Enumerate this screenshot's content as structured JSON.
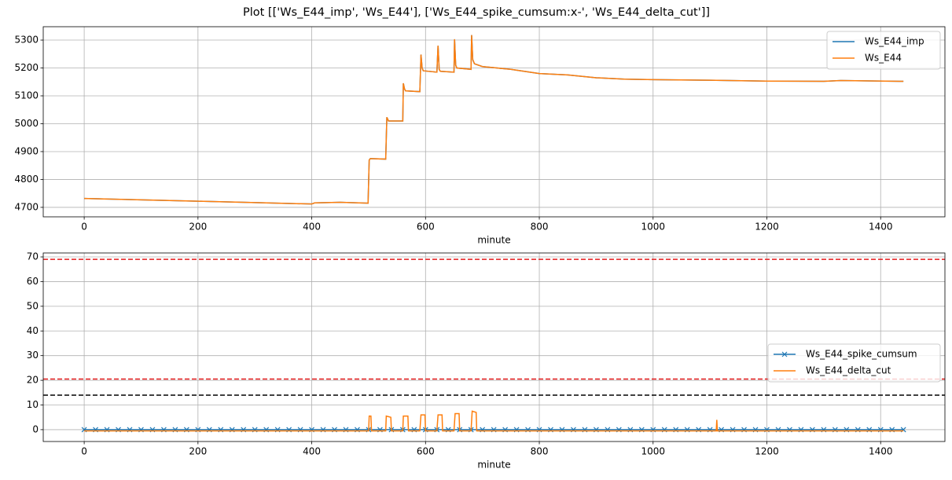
{
  "title": "Plot [['Ws_E44_imp', 'Ws_E44'], ['Ws_E44_spike_cumsum:x-', 'Ws_E44_delta_cut']]",
  "chart_data": [
    {
      "type": "line",
      "xlabel": "minute",
      "grid": true,
      "legend": "upper right",
      "xlim": [
        -72,
        1513
      ],
      "xticks": [
        0,
        200,
        400,
        600,
        800,
        1000,
        1200,
        1400
      ],
      "ylim": [
        4666,
        5348
      ],
      "yticks": [
        4700,
        4800,
        4900,
        5000,
        5100,
        5200,
        5300
      ],
      "x": [
        0,
        100,
        200,
        300,
        400,
        405,
        450,
        499,
        501,
        503,
        530,
        532,
        535,
        560,
        561,
        563,
        565,
        590,
        592,
        594,
        596,
        620,
        622,
        624,
        626,
        650,
        651,
        653,
        655,
        680,
        681,
        683,
        686,
        700,
        750,
        800,
        850,
        900,
        950,
        1000,
        1100,
        1200,
        1300,
        1330,
        1440
      ],
      "series": [
        {
          "name": "Ws_E44_imp",
          "color": "#1f77b4",
          "values": [
            4732,
            4727,
            4722,
            4717,
            4712,
            4716,
            4718,
            4715,
            4870,
            4875,
            4873,
            5023,
            5010,
            5010,
            5145,
            5125,
            5118,
            5115,
            5248,
            5200,
            5190,
            5185,
            5280,
            5195,
            5188,
            5185,
            5303,
            5210,
            5200,
            5195,
            5318,
            5230,
            5215,
            5205,
            5195,
            5180,
            5175,
            5165,
            5160,
            5158,
            5156,
            5153,
            5152,
            5155,
            5152
          ]
        },
        {
          "name": "Ws_E44",
          "color": "#ff7f0e",
          "values": [
            4732,
            4727,
            4722,
            4717,
            4712,
            4716,
            4718,
            4715,
            4870,
            4875,
            4873,
            5023,
            5010,
            5010,
            5145,
            5125,
            5118,
            5115,
            5248,
            5200,
            5190,
            5185,
            5280,
            5195,
            5188,
            5185,
            5303,
            5210,
            5200,
            5195,
            5318,
            5230,
            5215,
            5205,
            5195,
            5180,
            5175,
            5165,
            5160,
            5158,
            5156,
            5153,
            5152,
            5155,
            5152
          ]
        }
      ]
    },
    {
      "type": "line",
      "xlabel": "minute",
      "grid": true,
      "legend": "center right",
      "xlim": [
        -72,
        1513
      ],
      "xticks": [
        0,
        200,
        400,
        600,
        800,
        1000,
        1200,
        1400
      ],
      "ylim": [
        -4.8,
        71.6
      ],
      "yticks": [
        0,
        10,
        20,
        30,
        40,
        50,
        60,
        70
      ],
      "hlines": [
        {
          "value": 69,
          "color": "#e41a1c"
        },
        {
          "value": 20.5,
          "color": "#e41a1c"
        },
        {
          "value": 14,
          "color": "#000000"
        }
      ],
      "series": [
        {
          "name": "Ws_E44_spike_cumsum",
          "color": "#1f77b4",
          "marker": "x",
          "x": [
            0,
            20,
            40,
            60,
            80,
            100,
            120,
            140,
            160,
            180,
            200,
            220,
            240,
            260,
            280,
            300,
            320,
            340,
            360,
            380,
            400,
            420,
            440,
            460,
            480,
            500,
            520,
            540,
            560,
            580,
            600,
            620,
            640,
            660,
            680,
            700,
            720,
            740,
            760,
            780,
            800,
            820,
            840,
            860,
            880,
            900,
            920,
            940,
            960,
            980,
            1000,
            1020,
            1040,
            1060,
            1080,
            1100,
            1120,
            1140,
            1160,
            1180,
            1200,
            1220,
            1240,
            1260,
            1280,
            1300,
            1320,
            1340,
            1360,
            1380,
            1400,
            1420,
            1440
          ],
          "values": [
            0,
            0,
            0,
            0,
            0,
            0,
            0,
            0,
            0,
            0,
            0,
            0,
            0,
            0,
            0,
            0,
            0,
            0,
            0,
            0,
            0,
            0,
            0,
            0,
            0,
            0,
            0,
            0,
            0,
            0,
            0,
            0,
            0,
            0,
            0,
            0,
            0,
            0,
            0,
            0,
            0,
            0,
            0,
            0,
            0,
            0,
            0,
            0,
            0,
            0,
            0,
            0,
            0,
            0,
            0,
            0,
            0,
            0,
            0,
            0,
            0,
            0,
            0,
            0,
            0,
            0,
            0,
            0,
            0,
            0,
            0,
            0,
            0
          ]
        },
        {
          "name": "Ws_E44_delta_cut",
          "color": "#ff7f0e",
          "x": [
            0,
            500,
            501,
            504,
            505,
            530,
            531,
            539,
            540,
            560,
            561,
            569,
            570,
            590,
            592,
            599,
            600,
            620,
            622,
            629,
            630,
            650,
            652,
            659,
            660,
            680,
            682,
            689,
            690,
            1111,
            1112,
            1113,
            1440
          ],
          "values": [
            -0.5,
            -0.5,
            5.5,
            5.5,
            -0.5,
            -0.5,
            5.5,
            5,
            -0.5,
            -0.5,
            5.5,
            5.5,
            -0.5,
            -0.5,
            6,
            6,
            -0.5,
            -0.5,
            6,
            6,
            -0.5,
            -0.5,
            6.5,
            6.5,
            -0.5,
            -0.5,
            7.5,
            7,
            -0.5,
            -0.5,
            4,
            -0.5,
            -0.5
          ]
        }
      ]
    }
  ]
}
